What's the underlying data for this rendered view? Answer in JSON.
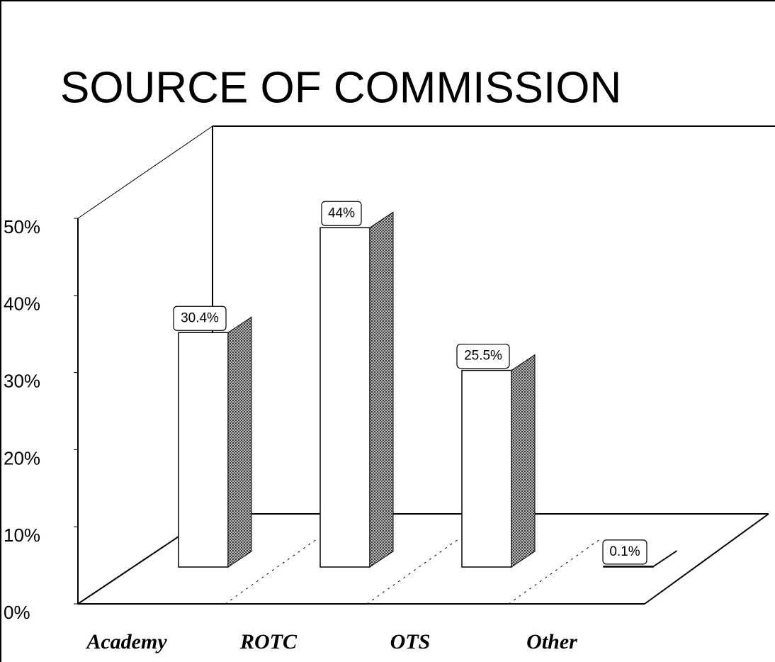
{
  "chart_data": {
    "type": "bar3d",
    "title": "SOURCE OF COMMISSION",
    "categories": [
      "Academy",
      "ROTC",
      "OTS",
      "Other"
    ],
    "values": [
      30.4,
      44,
      25.5,
      0.1
    ],
    "value_labels": [
      "30.4%",
      "44%",
      "25.5%",
      "0.1%"
    ],
    "ylim": [
      0,
      50
    ],
    "yticks": [
      {
        "value": 0,
        "label": "0%"
      },
      {
        "value": 10,
        "label": "10%"
      },
      {
        "value": 20,
        "label": "20%"
      },
      {
        "value": 30,
        "label": "30%"
      },
      {
        "value": 40,
        "label": "40%"
      },
      {
        "value": 50,
        "label": "50%"
      }
    ],
    "color": "#ffffff"
  }
}
